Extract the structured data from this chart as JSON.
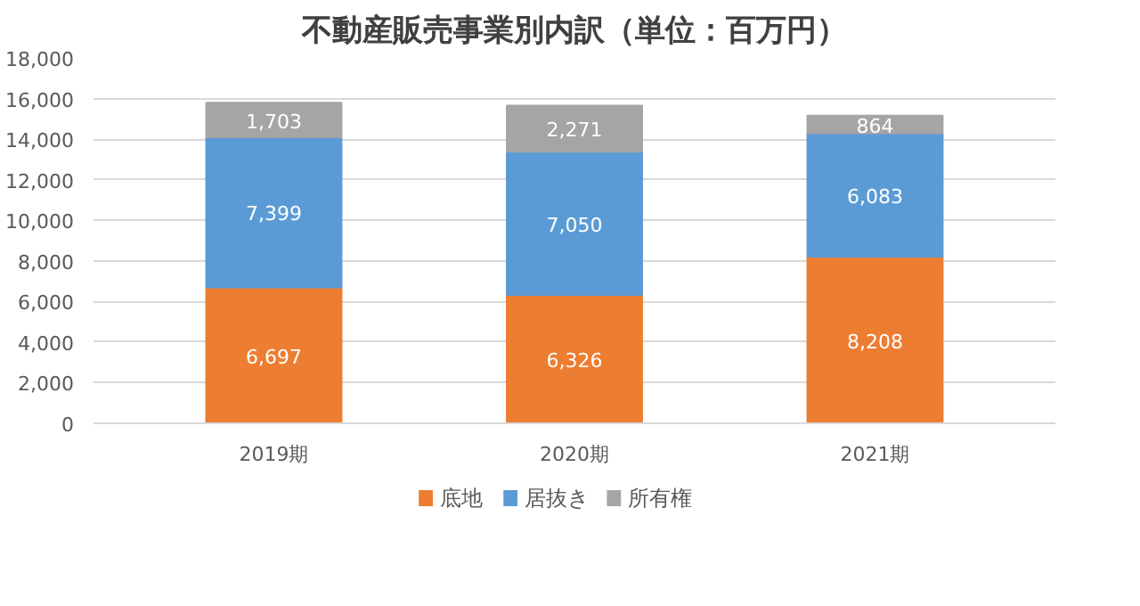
{
  "chart_data": {
    "type": "bar",
    "title": "不動産販売事業別内訳（単位：百万円）",
    "stacked": true,
    "categories": [
      "2019期",
      "2020期",
      "2021期"
    ],
    "series": [
      {
        "name": "底地",
        "color": "#ed7d31",
        "values": [
          6697,
          6326,
          8208
        ],
        "value_labels": [
          "6,697",
          "6,326",
          "8,208"
        ]
      },
      {
        "name": "居抜き",
        "color": "#5b9bd5",
        "values": [
          7399,
          7050,
          6083
        ],
        "value_labels": [
          "7,399",
          "7,050",
          "6,083"
        ]
      },
      {
        "name": "所有権",
        "color": "#a5a5a5",
        "values": [
          1703,
          2271,
          864
        ],
        "value_labels": [
          "1,703",
          "2,271",
          "864"
        ]
      }
    ],
    "ylim": [
      0,
      18000
    ],
    "yticks": [
      0,
      {
        "value": 2000,
        "label": "2,000"
      },
      {
        "value": 4000,
        "label": "4,000"
      },
      {
        "value": 6000,
        "label": "6,000"
      },
      {
        "value": 8000,
        "label": "8,000"
      },
      {
        "value": 10000,
        "label": "10,000"
      },
      {
        "value": 12000,
        "label": "12,000"
      },
      {
        "value": 14000,
        "label": "14,000"
      },
      {
        "value": 16000,
        "label": "16,000"
      },
      {
        "value": 18000,
        "label": "18,000"
      }
    ],
    "grid": "y",
    "legend": "bottom"
  }
}
